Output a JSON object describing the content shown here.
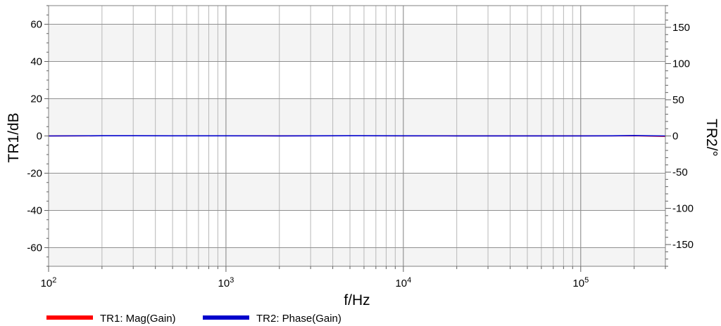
{
  "chart_data": {
    "type": "line",
    "xlabel": "f/Hz",
    "ylabel_left": "TR1/dB",
    "ylabel_right": "TR2/°",
    "x_scale": "log",
    "xlim": [
      100,
      300000
    ],
    "ylim_left": [
      -70,
      70
    ],
    "ylim_right": [
      -180,
      180
    ],
    "x_ticks": [
      {
        "value": 100,
        "base": "10",
        "exp": "2"
      },
      {
        "value": 1000,
        "base": "10",
        "exp": "3"
      },
      {
        "value": 10000,
        "base": "10",
        "exp": "4"
      },
      {
        "value": 100000,
        "base": "10",
        "exp": "5"
      }
    ],
    "y_left_ticks": [
      {
        "value": 60,
        "label": "60"
      },
      {
        "value": 40,
        "label": "40"
      },
      {
        "value": 20,
        "label": "20"
      },
      {
        "value": 0,
        "label": "0"
      },
      {
        "value": -20,
        "label": "-20"
      },
      {
        "value": -40,
        "label": "-40"
      },
      {
        "value": -60,
        "label": "-60"
      }
    ],
    "y_right_ticks": [
      {
        "value": 150,
        "label": "150"
      },
      {
        "value": 100,
        "label": "100"
      },
      {
        "value": 50,
        "label": "50"
      },
      {
        "value": 0,
        "label": "0"
      },
      {
        "value": -50,
        "label": "-50"
      },
      {
        "value": -100,
        "label": "-100"
      },
      {
        "value": -150,
        "label": "-150"
      }
    ],
    "grid": true,
    "legend_position": "bottom-left",
    "series": [
      {
        "name": "TR1: Mag(Gain)",
        "color": "#ff0000",
        "axis": "left",
        "x": [
          100,
          200,
          300,
          500,
          1000,
          2000,
          5000,
          10000,
          20000,
          50000,
          100000,
          150000,
          200000,
          250000,
          300000
        ],
        "y": [
          0,
          0.1,
          0.1,
          0.1,
          0.1,
          0.05,
          0.1,
          0.05,
          0.05,
          0.05,
          0.05,
          0.05,
          0.1,
          -0.1,
          -0.2
        ]
      },
      {
        "name": "TR2: Phase(Gain)",
        "color": "#0000cc",
        "axis": "right",
        "x": [
          100,
          200,
          300,
          500,
          1000,
          2000,
          5000,
          10000,
          20000,
          50000,
          100000,
          150000,
          200000,
          250000,
          300000
        ],
        "y": [
          0,
          0.3,
          0.3,
          0.2,
          0.2,
          0.1,
          0.3,
          0.2,
          0.1,
          0.1,
          0.1,
          0.2,
          0.5,
          0.2,
          0
        ]
      }
    ]
  }
}
